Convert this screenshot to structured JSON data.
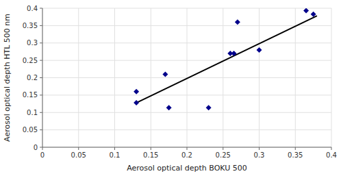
{
  "chart_data": {
    "type": "scatter",
    "xlabel": "Aerosol optical depth BOKU 500",
    "ylabel": "Aerosol optical depth HTL 500 nm",
    "series": [
      {
        "type": "scatter",
        "color": "#00008B",
        "marker": "diamond",
        "x": [
          0.13,
          0.13,
          0.17,
          0.175,
          0.23,
          0.26,
          0.265,
          0.3,
          0.27,
          0.365,
          0.375
        ],
        "values": [
          0.16,
          0.128,
          0.21,
          0.114,
          0.114,
          0.27,
          0.27,
          0.28,
          0.36,
          0.393,
          0.383
        ]
      },
      {
        "type": "line",
        "color": "#000000",
        "line_style": "solid",
        "x": [
          0.13,
          0.38
        ],
        "values": [
          0.128,
          0.378
        ]
      }
    ],
    "xlim": [
      0,
      0.4
    ],
    "ylim": [
      0,
      0.4
    ],
    "xticks": [
      0,
      0.05,
      0.1,
      0.15,
      0.2,
      0.25,
      0.3,
      0.35,
      0.4
    ],
    "yticks": [
      0,
      0.05,
      0.1,
      0.15,
      0.2,
      0.25,
      0.3,
      0.35,
      0.4
    ],
    "grid": true
  }
}
